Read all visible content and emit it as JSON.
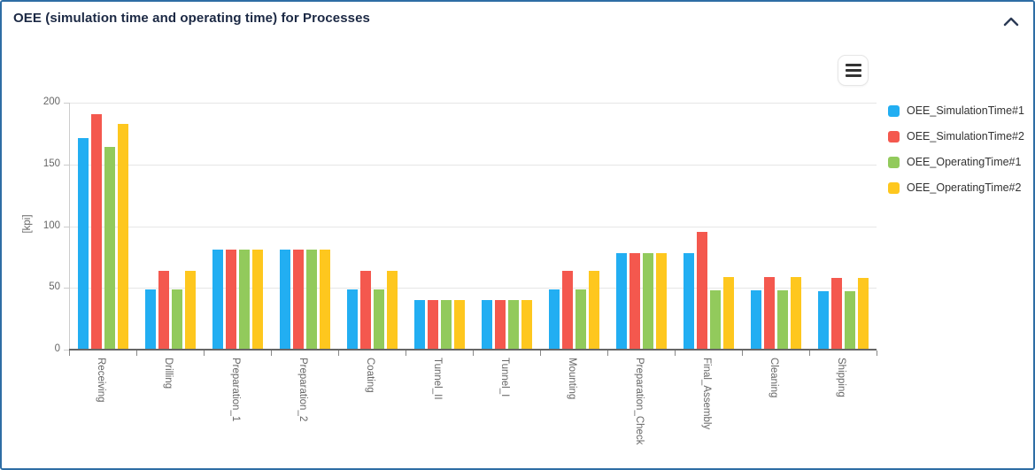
{
  "panel": {
    "title": "OEE (simulation time and operating time) for Processes",
    "collapse_icon": "chevron-up",
    "menu_icon": "hamburger-menu"
  },
  "colors": {
    "panel_border": "#2E6DA4",
    "title_text": "#1C2944",
    "axis_text": "#666666",
    "legend_text": "#333333",
    "gridline": "#e6e6e6"
  },
  "chart_data": {
    "type": "bar",
    "title": "",
    "xlabel": "",
    "ylabel": "[kpi]",
    "ylim": [
      0,
      200
    ],
    "yticks": [
      0,
      50,
      100,
      150,
      200
    ],
    "grid": true,
    "legend_position": "right",
    "categories": [
      "Receiving",
      "Drilling",
      "Preparation_1",
      "Preparation_2",
      "Coating",
      "Tunnel_II",
      "Tunnel_I",
      "Mounting",
      "Preparation_Check",
      "Final_Assembly",
      "Cleaning",
      "Shipping"
    ],
    "series": [
      {
        "name": "OEE_SimulationTime#1",
        "color": "#22AEF2",
        "values": [
          171,
          49,
          81,
          81,
          49,
          40,
          40,
          49,
          78,
          78,
          48,
          47
        ]
      },
      {
        "name": "OEE_SimulationTime#2",
        "color": "#F4584E",
        "values": [
          191,
          64,
          81,
          81,
          64,
          40,
          40,
          64,
          78,
          95,
          59,
          58
        ]
      },
      {
        "name": "OEE_OperatingTime#1",
        "color": "#92CA5C",
        "values": [
          164,
          49,
          81,
          81,
          49,
          40,
          40,
          49,
          78,
          48,
          48,
          47
        ]
      },
      {
        "name": "OEE_OperatingTime#2",
        "color": "#FEC71E",
        "values": [
          183,
          64,
          81,
          81,
          64,
          40,
          40,
          64,
          78,
          59,
          59,
          58
        ]
      }
    ]
  }
}
